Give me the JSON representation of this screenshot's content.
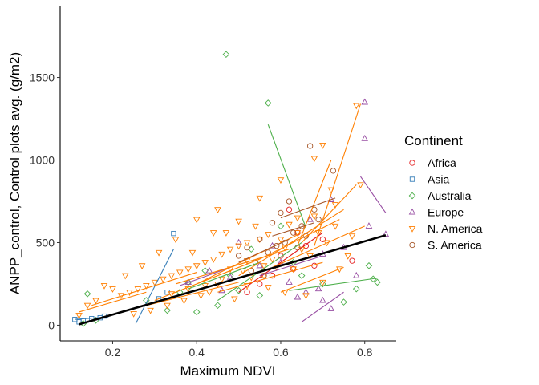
{
  "chart_data": {
    "type": "scatter",
    "title": "",
    "xlabel": "Maximum NDVI",
    "ylabel": "ANPP_control, Control plots avg. (g/m2)",
    "xlim": [
      0.075,
      0.875
    ],
    "ylim": [
      -95,
      1930
    ],
    "xticks": [
      0.2,
      0.4,
      0.6,
      0.8
    ],
    "xtick_labels": [
      "0.2",
      "0.4",
      "0.6",
      "0.8"
    ],
    "yticks": [
      0,
      500,
      1000,
      1500
    ],
    "ytick_labels": [
      "0",
      "500",
      "1000",
      "1500"
    ],
    "grid": false,
    "legend": {
      "title": "Continent",
      "position": "right"
    },
    "series": [
      {
        "name": "Africa",
        "color": "#E41A1C",
        "marker": "circle",
        "points": [
          [
            0.62,
            700
          ],
          [
            0.64,
            560
          ],
          [
            0.66,
            480
          ],
          [
            0.58,
            300
          ],
          [
            0.6,
            420
          ],
          [
            0.55,
            250
          ],
          [
            0.7,
            520
          ],
          [
            0.68,
            360
          ],
          [
            0.77,
            390
          ],
          [
            0.63,
            340
          ],
          [
            0.52,
            200
          ]
        ],
        "lines": [
          [
            [
              0.5,
              200
            ],
            [
              0.7,
              560
            ]
          ]
        ]
      },
      {
        "name": "Asia",
        "color": "#377EB8",
        "marker": "square",
        "points": [
          [
            0.11,
            35
          ],
          [
            0.13,
            30
          ],
          [
            0.15,
            40
          ],
          [
            0.17,
            45
          ],
          [
            0.18,
            55
          ],
          [
            0.33,
            200
          ],
          [
            0.345,
            555
          ],
          [
            0.31,
            160
          ],
          [
            0.12,
            20
          ]
        ],
        "lines": [
          [
            [
              0.255,
              10
            ],
            [
              0.345,
              460
            ]
          ],
          [
            [
              0.11,
              35
            ],
            [
              0.19,
              50
            ]
          ]
        ]
      },
      {
        "name": "Australia",
        "color": "#4DAF4A",
        "marker": "diamond",
        "points": [
          [
            0.47,
            1640
          ],
          [
            0.57,
            1345
          ],
          [
            0.14,
            190
          ],
          [
            0.13,
            10
          ],
          [
            0.16,
            30
          ],
          [
            0.38,
            260
          ],
          [
            0.42,
            330
          ],
          [
            0.6,
            600
          ],
          [
            0.78,
            220
          ],
          [
            0.82,
            280
          ],
          [
            0.83,
            260
          ],
          [
            0.81,
            360
          ],
          [
            0.55,
            180
          ],
          [
            0.45,
            120
          ],
          [
            0.5,
            210
          ],
          [
            0.65,
            300
          ],
          [
            0.7,
            250
          ],
          [
            0.33,
            90
          ],
          [
            0.28,
            150
          ],
          [
            0.4,
            80
          ],
          [
            0.75,
            140
          ],
          [
            0.63,
            380
          ],
          [
            0.36,
            200
          ],
          [
            0.48,
            300
          ],
          [
            0.53,
            460
          ]
        ],
        "lines": [
          [
            [
              0.57,
              1215
            ],
            [
              0.66,
              590
            ]
          ],
          [
            [
              0.62,
              210
            ],
            [
              0.83,
              285
            ]
          ],
          [
            [
              0.45,
              150
            ],
            [
              0.65,
              500
            ]
          ],
          [
            [
              0.38,
              220
            ],
            [
              0.55,
              380
            ]
          ]
        ]
      },
      {
        "name": "Europe",
        "color": "#984EA3",
        "marker": "triangle-up",
        "points": [
          [
            0.8,
            1350
          ],
          [
            0.8,
            1130
          ],
          [
            0.72,
            760
          ],
          [
            0.7,
            430
          ],
          [
            0.69,
            220
          ],
          [
            0.72,
            100
          ],
          [
            0.7,
            150
          ],
          [
            0.66,
            200
          ],
          [
            0.62,
            260
          ],
          [
            0.6,
            380
          ],
          [
            0.55,
            360
          ],
          [
            0.5,
            500
          ],
          [
            0.48,
            290
          ],
          [
            0.43,
            330
          ],
          [
            0.38,
            260
          ],
          [
            0.75,
            470
          ],
          [
            0.78,
            300
          ],
          [
            0.85,
            550
          ],
          [
            0.81,
            600
          ],
          [
            0.67,
            640
          ],
          [
            0.58,
            480
          ],
          [
            0.46,
            210
          ],
          [
            0.64,
            170
          ]
        ],
        "lines": [
          [
            [
              0.65,
              20
            ],
            [
              0.75,
              200
            ]
          ],
          [
            [
              0.79,
              900
            ],
            [
              0.85,
              680
            ]
          ],
          [
            [
              0.36,
              240
            ],
            [
              0.48,
              350
            ]
          ],
          [
            [
              0.55,
              300
            ],
            [
              0.7,
              420
            ]
          ]
        ]
      },
      {
        "name": "N. America",
        "color": "#FF7F00",
        "marker": "triangle-down",
        "points": [
          [
            0.78,
            1330
          ],
          [
            0.7,
            1090
          ],
          [
            0.68,
            1010
          ],
          [
            0.79,
            850
          ],
          [
            0.72,
            820
          ],
          [
            0.73,
            730
          ],
          [
            0.68,
            660
          ],
          [
            0.64,
            650
          ],
          [
            0.62,
            610
          ],
          [
            0.57,
            550
          ],
          [
            0.55,
            520
          ],
          [
            0.52,
            500
          ],
          [
            0.5,
            480
          ],
          [
            0.48,
            460
          ],
          [
            0.46,
            430
          ],
          [
            0.44,
            400
          ],
          [
            0.42,
            380
          ],
          [
            0.4,
            360
          ],
          [
            0.38,
            340
          ],
          [
            0.36,
            320
          ],
          [
            0.34,
            300
          ],
          [
            0.32,
            280
          ],
          [
            0.3,
            260
          ],
          [
            0.28,
            240
          ],
          [
            0.26,
            220
          ],
          [
            0.24,
            200
          ],
          [
            0.22,
            180
          ],
          [
            0.2,
            220
          ],
          [
            0.18,
            240
          ],
          [
            0.16,
            150
          ],
          [
            0.14,
            120
          ],
          [
            0.12,
            60
          ],
          [
            0.6,
            880
          ],
          [
            0.55,
            770
          ],
          [
            0.5,
            630
          ],
          [
            0.47,
            560
          ],
          [
            0.53,
            290
          ],
          [
            0.57,
            230
          ],
          [
            0.61,
            200
          ],
          [
            0.66,
            180
          ],
          [
            0.7,
            260
          ],
          [
            0.74,
            340
          ],
          [
            0.76,
            420
          ],
          [
            0.65,
            460
          ],
          [
            0.58,
            400
          ],
          [
            0.45,
            250
          ],
          [
            0.41,
            180
          ],
          [
            0.37,
            150
          ],
          [
            0.33,
            120
          ],
          [
            0.29,
            90
          ],
          [
            0.25,
            70
          ],
          [
            0.43,
            200
          ],
          [
            0.49,
            160
          ],
          [
            0.51,
            330
          ],
          [
            0.56,
            300
          ],
          [
            0.63,
            340
          ],
          [
            0.67,
            420
          ],
          [
            0.71,
            500
          ],
          [
            0.69,
            560
          ],
          [
            0.59,
            350
          ],
          [
            0.54,
            600
          ],
          [
            0.45,
            700
          ],
          [
            0.4,
            640
          ],
          [
            0.35,
            520
          ],
          [
            0.31,
            440
          ],
          [
            0.27,
            360
          ],
          [
            0.23,
            300
          ],
          [
            0.39,
            440
          ],
          [
            0.44,
            560
          ],
          [
            0.48,
            340
          ],
          [
            0.52,
            390
          ],
          [
            0.61,
            470
          ],
          [
            0.73,
            600
          ],
          [
            0.77,
            540
          ],
          [
            0.64,
            560
          ],
          [
            0.6,
            520
          ],
          [
            0.56,
            360
          ],
          [
            0.52,
            240
          ],
          [
            0.46,
            280
          ],
          [
            0.42,
            240
          ],
          [
            0.38,
            220
          ],
          [
            0.34,
            190
          ]
        ],
        "lines": [
          [
            [
              0.68,
              480
            ],
            [
              0.79,
              1340
            ]
          ],
          [
            [
              0.64,
              480
            ],
            [
              0.72,
              1000
            ]
          ],
          [
            [
              0.12,
              80
            ],
            [
              0.28,
              200
            ]
          ],
          [
            [
              0.15,
              120
            ],
            [
              0.4,
              320
            ]
          ],
          [
            [
              0.3,
              150
            ],
            [
              0.55,
              400
            ]
          ],
          [
            [
              0.4,
              250
            ],
            [
              0.65,
              560
            ]
          ],
          [
            [
              0.5,
              300
            ],
            [
              0.75,
              700
            ]
          ],
          [
            [
              0.55,
              400
            ],
            [
              0.74,
              640
            ]
          ],
          [
            [
              0.45,
              200
            ],
            [
              0.7,
              380
            ]
          ],
          [
            [
              0.58,
              350
            ],
            [
              0.8,
              600
            ]
          ],
          [
            [
              0.35,
              250
            ],
            [
              0.62,
              460
            ]
          ],
          [
            [
              0.25,
              100
            ],
            [
              0.5,
              260
            ]
          ],
          [
            [
              0.6,
              200
            ],
            [
              0.75,
              350
            ]
          ],
          [
            [
              0.65,
              500
            ],
            [
              0.78,
              850
            ]
          ]
        ]
      },
      {
        "name": "S. America",
        "color": "#A65628",
        "marker": "circle",
        "points": [
          [
            0.67,
            1085
          ],
          [
            0.725,
            935
          ],
          [
            0.62,
            750
          ],
          [
            0.6,
            680
          ],
          [
            0.58,
            620
          ],
          [
            0.55,
            520
          ],
          [
            0.52,
            470
          ],
          [
            0.5,
            420
          ],
          [
            0.68,
            700
          ],
          [
            0.63,
            560
          ],
          [
            0.65,
            600
          ],
          [
            0.66,
            540
          ],
          [
            0.59,
            480
          ],
          [
            0.57,
            440
          ],
          [
            0.61,
            500
          ],
          [
            0.64,
            470
          ],
          [
            0.54,
            380
          ],
          [
            0.53,
            330
          ],
          [
            0.56,
            300
          ],
          [
            0.69,
            640
          ]
        ],
        "lines": [
          [
            [
              0.6,
              650
            ],
            [
              0.73,
              770
            ]
          ],
          [
            [
              0.58,
              540
            ],
            [
              0.68,
              620
            ]
          ],
          [
            [
              0.5,
              380
            ],
            [
              0.62,
              520
            ]
          ]
        ]
      }
    ],
    "overall_fit": {
      "color": "#000000",
      "points": [
        [
          0.12,
          5
        ],
        [
          0.85,
          545
        ]
      ]
    }
  }
}
